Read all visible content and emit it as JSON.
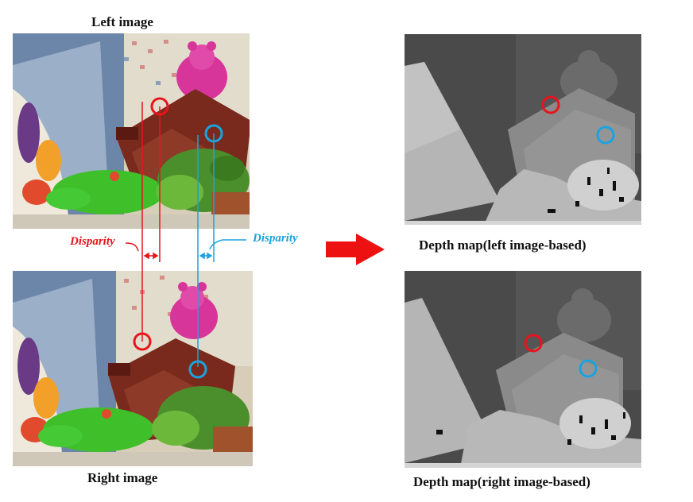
{
  "captions": {
    "left_image": "Left image",
    "right_image": "Right image",
    "depth_left": "Depth map(left image-based)",
    "depth_right": "Depth map(right image-based)"
  },
  "annotations": {
    "disparity_red": "Disparity",
    "disparity_blue": "Disparity"
  },
  "colors": {
    "red_marker": "#e8141c",
    "blue_marker": "#1aa3e0",
    "arrow": "#ee1111"
  },
  "icons": {
    "arrow": "right-arrow-icon",
    "markers": "circle-marker-icon"
  }
}
